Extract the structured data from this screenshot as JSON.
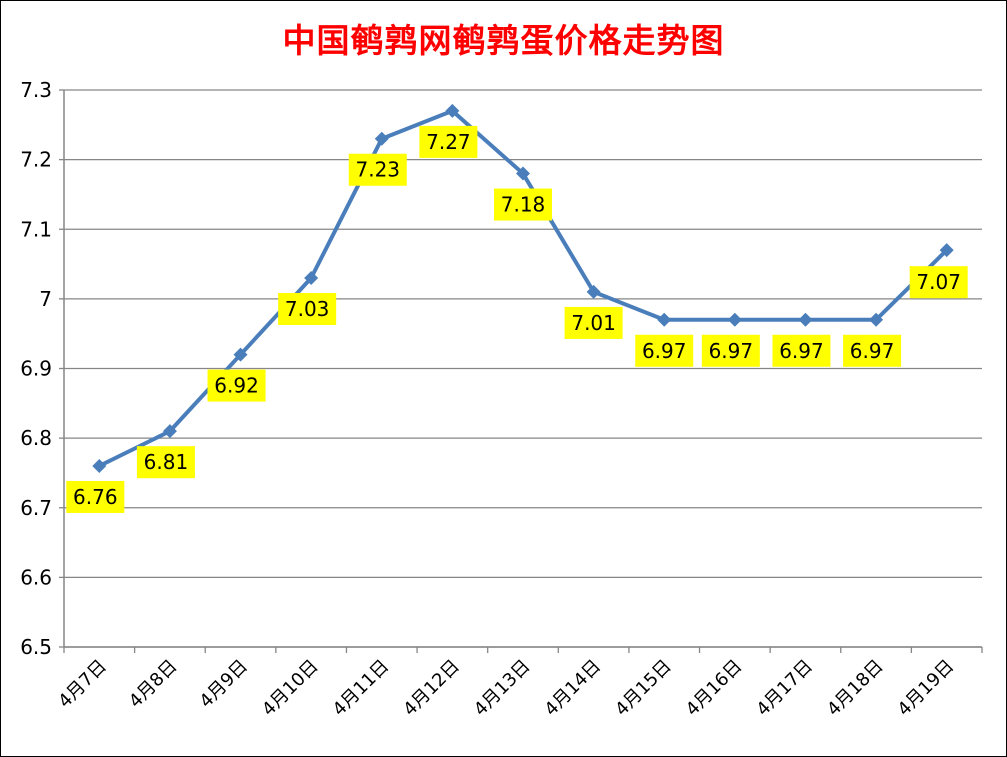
{
  "chart_data": {
    "type": "line",
    "title": "中国鹌鹑网鹌鹑蛋价格走势图",
    "categories": [
      "4月7日",
      "4月8日",
      "4月9日",
      "4月10日",
      "4月11日",
      "4月12日",
      "4月13日",
      "4月14日",
      "4月15日",
      "4月16日",
      "4月17日",
      "4月18日",
      "4月19日"
    ],
    "series": [
      {
        "values": [
          6.76,
          6.81,
          6.92,
          7.03,
          7.23,
          7.27,
          7.18,
          7.01,
          6.97,
          6.97,
          6.97,
          6.97,
          7.07
        ]
      }
    ],
    "data_labels": [
      "6.76",
      "6.81",
      "6.92",
      "7.03",
      "7.23",
      "7.27",
      "7.18",
      "7.01",
      "6.97",
      "6.97",
      "6.97",
      "6.97",
      "7.07"
    ],
    "ylim": [
      6.5,
      7.3
    ],
    "yticks": [
      6.5,
      6.6,
      6.7,
      6.8,
      6.9,
      7,
      7.1,
      7.2,
      7.3
    ],
    "ytick_labels": [
      "6.5",
      "6.6",
      "6.7",
      "6.8",
      "6.9",
      "7",
      "7.1",
      "7.2",
      "7.3"
    ],
    "grid": true,
    "legend": "none",
    "colors": {
      "line": "#4a7ebb",
      "label_bg": "#ffff00",
      "title": "#ff0000",
      "grid": "#868686"
    }
  }
}
